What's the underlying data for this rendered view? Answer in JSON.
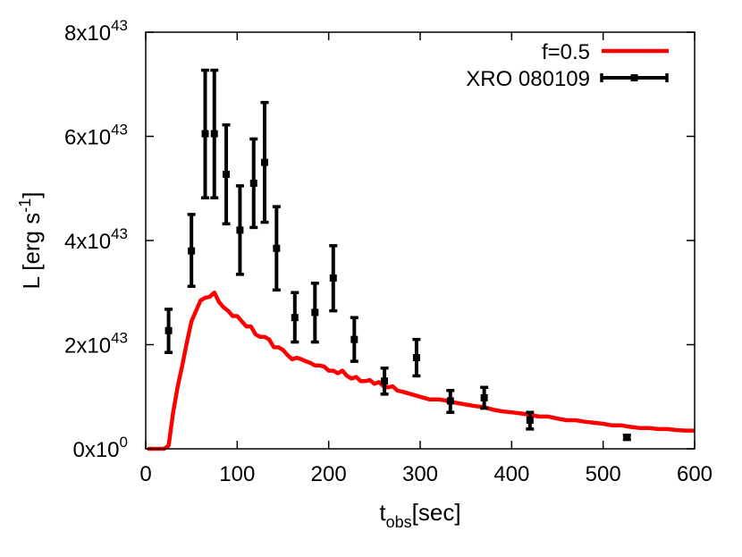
{
  "chart_data": {
    "type": "line",
    "xlabel_main": "t",
    "xlabel_sub": "obs",
    "xlabel_unit": "[sec]",
    "ylabel": "L [erg s",
    "ylabel_sup": "-1",
    "ylabel_close": "]",
    "xlim": [
      0,
      600
    ],
    "ylim": [
      0,
      8e+43
    ],
    "x_ticks": [
      {
        "value": 0,
        "label": "0"
      },
      {
        "value": 100,
        "label": "100"
      },
      {
        "value": 200,
        "label": "200"
      },
      {
        "value": 300,
        "label": "300"
      },
      {
        "value": 400,
        "label": "400"
      },
      {
        "value": 500,
        "label": "500"
      },
      {
        "value": 600,
        "label": "600"
      }
    ],
    "y_ticks": [
      {
        "value": 0,
        "mantissa": "0x10",
        "exponent": "0"
      },
      {
        "value": 2e+43,
        "mantissa": "2x10",
        "exponent": "43"
      },
      {
        "value": 4e+43,
        "mantissa": "4x10",
        "exponent": "43"
      },
      {
        "value": 6e+43,
        "mantissa": "6x10",
        "exponent": "43"
      },
      {
        "value": 8e+43,
        "mantissa": "8x10",
        "exponent": "43"
      }
    ],
    "legend_position": "top-right",
    "grid": false,
    "series": [
      {
        "name": "f=0.5",
        "kind": "line",
        "color": "#ff0000",
        "x": [
          2,
          10,
          20,
          25,
          30,
          35,
          40,
          45,
          50,
          55,
          60,
          65,
          70,
          75,
          80,
          85,
          90,
          95,
          100,
          105,
          110,
          115,
          120,
          125,
          130,
          135,
          140,
          145,
          150,
          155,
          160,
          165,
          170,
          175,
          180,
          185,
          190,
          195,
          200,
          205,
          210,
          215,
          220,
          225,
          230,
          235,
          240,
          245,
          250,
          255,
          260,
          265,
          270,
          275,
          280,
          290,
          300,
          310,
          320,
          330,
          340,
          350,
          360,
          370,
          380,
          390,
          400,
          410,
          420,
          430,
          440,
          450,
          460,
          470,
          480,
          490,
          500,
          510,
          520,
          530,
          540,
          550,
          560,
          570,
          580,
          590,
          600
        ],
        "y": [
          0,
          0,
          0,
          6e+41,
          7e+42,
          1.2e+43,
          1.6e+43,
          2.05e+43,
          2.45e+43,
          2.65e+43,
          2.85e+43,
          2.9e+43,
          2.92e+43,
          3e+43,
          2.82e+43,
          2.72e+43,
          2.65e+43,
          2.55e+43,
          2.55e+43,
          2.45e+43,
          2.35e+43,
          2.35e+43,
          2.2e+43,
          2.15e+43,
          2.15e+43,
          2.1e+43,
          1.95e+43,
          1.95e+43,
          1.9e+43,
          1.8e+43,
          1.72e+43,
          1.75e+43,
          1.72e+43,
          1.68e+43,
          1.65e+43,
          1.6e+43,
          1.6e+43,
          1.58e+43,
          1.5e+43,
          1.5e+43,
          1.45e+43,
          1.5e+43,
          1.4e+43,
          1.35e+43,
          1.38e+43,
          1.3e+43,
          1.3e+43,
          1.32e+43,
          1.25e+43,
          1.28e+43,
          1.2e+43,
          1.18e+43,
          1.2e+43,
          1.12e+43,
          1.1e+43,
          1.05e+43,
          1e+43,
          9.5e+42,
          9.5e+42,
          9.2e+42,
          8.8e+42,
          8.5e+42,
          8.2e+42,
          8e+42,
          7.5e+42,
          7.2e+42,
          7e+42,
          6.8e+42,
          6.5e+42,
          6.2e+42,
          6.2e+42,
          5.8e+42,
          5.5e+42,
          5.5e+42,
          5.2e+42,
          5e+42,
          4.8e+42,
          4.5e+42,
          4.5e+42,
          4.2e+42,
          4e+42,
          4e+42,
          3.8e+42,
          3.8e+42,
          3.6e+42,
          3.5e+42,
          3.5e+42
        ]
      },
      {
        "name": "XRO 080109",
        "kind": "errorbar",
        "color": "#000000",
        "points": [
          {
            "x": 25,
            "y": 2.27e+43,
            "lo": 1.85e+43,
            "hi": 2.68e+43
          },
          {
            "x": 50,
            "y": 3.8e+43,
            "lo": 3.12e+43,
            "hi": 4.5e+43
          },
          {
            "x": 65,
            "y": 6.05e+43,
            "lo": 4.82e+43,
            "hi": 7.27e+43
          },
          {
            "x": 75,
            "y": 6.05e+43,
            "lo": 4.82e+43,
            "hi": 7.27e+43
          },
          {
            "x": 88,
            "y": 5.27e+43,
            "lo": 4.32e+43,
            "hi": 6.22e+43
          },
          {
            "x": 103,
            "y": 4.2e+43,
            "lo": 3.35e+43,
            "hi": 5.05e+43
          },
          {
            "x": 118,
            "y": 5.1e+43,
            "lo": 4.25e+43,
            "hi": 5.95e+43
          },
          {
            "x": 130,
            "y": 5.5e+43,
            "lo": 4.35e+43,
            "hi": 6.65e+43
          },
          {
            "x": 143,
            "y": 3.85e+43,
            "lo": 3.05e+43,
            "hi": 4.65e+43
          },
          {
            "x": 163,
            "y": 2.52e+43,
            "lo": 2.05e+43,
            "hi": 3e+43
          },
          {
            "x": 185,
            "y": 2.62e+43,
            "lo": 2.05e+43,
            "hi": 3.18e+43
          },
          {
            "x": 205,
            "y": 3.28e+43,
            "lo": 2.65e+43,
            "hi": 3.9e+43
          },
          {
            "x": 228,
            "y": 2.1e+43,
            "lo": 1.68e+43,
            "hi": 2.52e+43
          },
          {
            "x": 261,
            "y": 1.3e+43,
            "lo": 1.05e+43,
            "hi": 1.55e+43
          },
          {
            "x": 296,
            "y": 1.75e+43,
            "lo": 1.4e+43,
            "hi": 2.1e+43
          },
          {
            "x": 333,
            "y": 9.2e+42,
            "lo": 7e+42,
            "hi": 1.12e+43
          },
          {
            "x": 370,
            "y": 9.8e+42,
            "lo": 7.8e+42,
            "hi": 1.18e+43
          },
          {
            "x": 420,
            "y": 5.5e+42,
            "lo": 3.8e+42,
            "hi": 7e+42
          },
          {
            "x": 526,
            "y": 2.2e+42,
            "lo": 1.8e+42,
            "hi": 2.6e+42
          }
        ]
      }
    ]
  }
}
